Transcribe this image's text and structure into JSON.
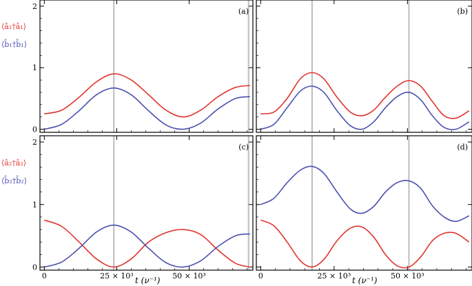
{
  "colors": {
    "red": "#e0332c",
    "blue": "#4a4fae",
    "vline": "#bdbdbd",
    "frame": "#000000"
  },
  "left_labels": {
    "top_red": "⟨â₁†â₁⟩",
    "top_blue": "⟨b̂₁†b̂₁⟩",
    "bottom_red": "⟨â₂†â₂⟩",
    "bottom_blue": "⟨b̂₂†b̂₂⟩"
  },
  "x_axis_label": "t (ν⁻¹)",
  "chart_data": [
    {
      "type": "line",
      "panel": "(a)",
      "xlim": [
        -1500,
        72000
      ],
      "ylim": [
        -0.05,
        2.1
      ],
      "yticks": [
        0,
        1,
        2
      ],
      "ytick_labels": [
        "0",
        "1",
        "2"
      ],
      "xticks": [
        0,
        25000,
        50000
      ],
      "xtick_labels": [],
      "vlines": [
        24000,
        70500
      ],
      "series": [
        {
          "name": "⟨â₁†â₁⟩",
          "color": "red",
          "x": [
            0,
            6000,
            12000,
            18000,
            24000,
            30000,
            36000,
            42000,
            48000,
            54000,
            60000,
            66000,
            71000
          ],
          "y": [
            0.25,
            0.31,
            0.52,
            0.77,
            0.9,
            0.8,
            0.56,
            0.31,
            0.2,
            0.31,
            0.53,
            0.68,
            0.71
          ]
        },
        {
          "name": "⟨b̂₁†b̂₁⟩",
          "color": "blue",
          "x": [
            0,
            6000,
            12000,
            18000,
            24000,
            30000,
            36000,
            42000,
            48000,
            54000,
            60000,
            66000,
            71000
          ],
          "y": [
            0.0,
            0.08,
            0.3,
            0.56,
            0.67,
            0.56,
            0.3,
            0.07,
            0.0,
            0.1,
            0.33,
            0.5,
            0.53
          ]
        }
      ]
    },
    {
      "type": "line",
      "panel": "(b)",
      "xlim": [
        -1500,
        72000
      ],
      "ylim": [
        -0.05,
        2.1
      ],
      "yticks": [
        0,
        1,
        2
      ],
      "ytick_labels": [],
      "xticks": [
        0,
        25000,
        50000
      ],
      "xtick_labels": [],
      "vlines": [
        17500,
        50500
      ],
      "series": [
        {
          "name": "⟨â₁†â₁⟩",
          "color": "red",
          "x": [
            0,
            4500,
            9000,
            13500,
            17500,
            21500,
            26000,
            30500,
            34500,
            38500,
            42500,
            46500,
            50500,
            54500,
            58500,
            62500,
            66500,
            71000
          ],
          "y": [
            0.25,
            0.28,
            0.5,
            0.82,
            0.92,
            0.82,
            0.52,
            0.28,
            0.22,
            0.31,
            0.52,
            0.7,
            0.79,
            0.7,
            0.45,
            0.22,
            0.18,
            0.3
          ]
        },
        {
          "name": "⟨b̂₁†b̂₁⟩",
          "color": "blue",
          "x": [
            0,
            4500,
            9000,
            13500,
            17500,
            21500,
            26000,
            30500,
            34500,
            38500,
            42500,
            46500,
            50500,
            54500,
            58500,
            62500,
            66500,
            71000
          ],
          "y": [
            0.0,
            0.08,
            0.35,
            0.62,
            0.7,
            0.6,
            0.3,
            0.06,
            0.0,
            0.12,
            0.35,
            0.53,
            0.6,
            0.48,
            0.22,
            0.03,
            0.0,
            0.12
          ]
        }
      ]
    },
    {
      "type": "line",
      "panel": "(c)",
      "xlim": [
        -1500,
        72000
      ],
      "ylim": [
        -0.05,
        2.1
      ],
      "yticks": [
        0,
        1,
        2
      ],
      "ytick_labels": [
        "0",
        "1",
        "2"
      ],
      "xticks": [
        0,
        25000,
        50000
      ],
      "xtick_labels": [
        "0",
        "25 × 10³",
        "50 × 10³"
      ],
      "vlines": [
        24000,
        70500
      ],
      "series": [
        {
          "name": "⟨â₂†â₂⟩",
          "color": "red",
          "x": [
            0,
            6000,
            12000,
            18000,
            24000,
            30000,
            36000,
            42000,
            48000,
            54000,
            60000,
            66000,
            71000
          ],
          "y": [
            0.75,
            0.65,
            0.4,
            0.13,
            0.0,
            0.13,
            0.4,
            0.55,
            0.6,
            0.52,
            0.27,
            0.06,
            0.0
          ]
        },
        {
          "name": "⟨b̂₂†b̂₂⟩",
          "color": "blue",
          "x": [
            0,
            6000,
            12000,
            18000,
            24000,
            30000,
            36000,
            42000,
            48000,
            54000,
            60000,
            66000,
            71000
          ],
          "y": [
            0.0,
            0.08,
            0.3,
            0.56,
            0.67,
            0.56,
            0.3,
            0.07,
            0.0,
            0.1,
            0.33,
            0.5,
            0.53
          ]
        }
      ]
    },
    {
      "type": "line",
      "panel": "(d)",
      "xlim": [
        -1500,
        72000
      ],
      "ylim": [
        -0.05,
        2.1
      ],
      "yticks": [
        0,
        1,
        2
      ],
      "ytick_labels": [],
      "xticks": [
        0,
        25000,
        50000
      ],
      "xtick_labels": [
        "0",
        "25 × 10³",
        "50 × 10³"
      ],
      "vlines": [
        17500,
        50500
      ],
      "series": [
        {
          "name": "⟨â₂†â₂⟩",
          "color": "red",
          "x": [
            0,
            4500,
            9000,
            13500,
            17500,
            21500,
            26000,
            30500,
            34500,
            38500,
            42500,
            46500,
            50500,
            54500,
            58500,
            62500,
            66500,
            71000
          ],
          "y": [
            0.75,
            0.66,
            0.4,
            0.1,
            0.0,
            0.12,
            0.42,
            0.62,
            0.64,
            0.48,
            0.2,
            0.02,
            0.0,
            0.16,
            0.42,
            0.54,
            0.54,
            0.4
          ]
        },
        {
          "name": "⟨b̂₂†b̂₂⟩",
          "color": "blue",
          "x": [
            0,
            4500,
            9000,
            13500,
            17500,
            21500,
            26000,
            30500,
            34500,
            38500,
            42500,
            46500,
            50500,
            54500,
            58500,
            62500,
            66500,
            71000
          ],
          "y": [
            1.0,
            1.1,
            1.35,
            1.55,
            1.61,
            1.5,
            1.2,
            0.93,
            0.86,
            0.97,
            1.2,
            1.35,
            1.38,
            1.26,
            0.98,
            0.8,
            0.73,
            0.82
          ]
        }
      ]
    }
  ]
}
